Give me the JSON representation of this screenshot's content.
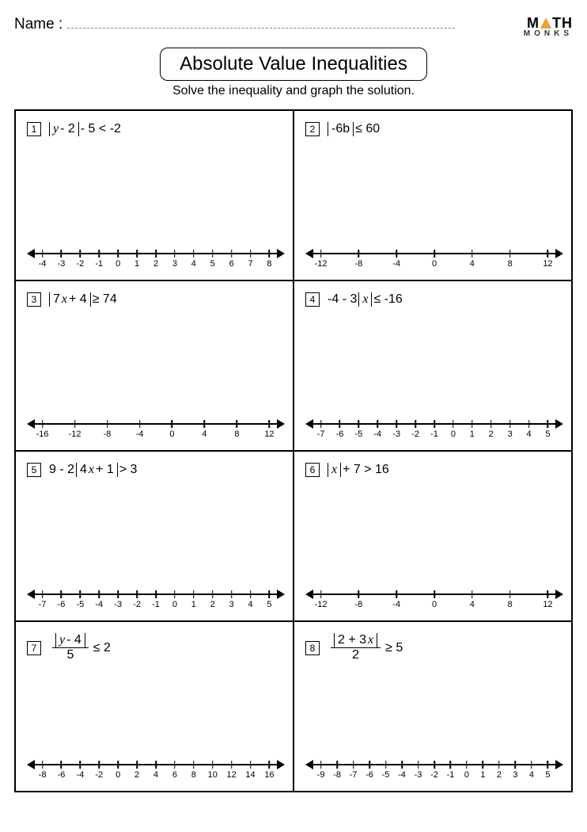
{
  "header": {
    "name_label": "Name :",
    "logo_top_left": "M",
    "logo_top_right": "TH",
    "logo_bottom": "MONKS"
  },
  "title": "Absolute Value Inequalities",
  "subtitle": "Solve the inequality and graph the solution.",
  "problems": [
    {
      "num": "1",
      "expr_html": "<span class='abs'><span class='it'>y</span> - 2</span> - 5 &lt; -2",
      "ticks": [
        -4,
        -3,
        -2,
        -1,
        0,
        1,
        2,
        3,
        4,
        5,
        6,
        7,
        8
      ]
    },
    {
      "num": "2",
      "expr_html": "<span class='abs'>-6b</span> ≤ 60",
      "ticks": [
        -12,
        -8,
        -4,
        0,
        4,
        8,
        12
      ]
    },
    {
      "num": "3",
      "expr_html": "<span class='abs'>7<span class='it'>x</span> + 4</span> ≥ 74",
      "ticks": [
        -16,
        -12,
        -8,
        -4,
        0,
        4,
        8,
        12
      ]
    },
    {
      "num": "4",
      "expr_html": "-4 - 3<span class='abs'><span class='it'>x</span></span> ≤ -16",
      "ticks": [
        -7,
        -6,
        -5,
        -4,
        -3,
        -2,
        -1,
        0,
        1,
        2,
        3,
        4,
        5
      ]
    },
    {
      "num": "5",
      "expr_html": "9 - 2<span class='abs'>4<span class='it'>x</span> + 1</span> &gt; 3",
      "ticks": [
        -7,
        -6,
        -5,
        -4,
        -3,
        -2,
        -1,
        0,
        1,
        2,
        3,
        4,
        5
      ]
    },
    {
      "num": "6",
      "expr_html": "<span class='abs'><span class='it'>x</span></span> + 7 &gt; 16",
      "ticks": [
        -12,
        -8,
        -4,
        0,
        4,
        8,
        12
      ]
    },
    {
      "num": "7",
      "expr_html": "<span class='frac'><span class='top'><span class='abs'><span class='it'>y</span> - 4</span></span><span class='bar'></span><span class='bot'>5</span></span> ≤ 2",
      "ticks": [
        -8,
        -6,
        -4,
        -2,
        0,
        2,
        4,
        6,
        8,
        10,
        12,
        14,
        16
      ]
    },
    {
      "num": "8",
      "expr_html": "<span class='frac'><span class='top'><span class='abs'>2 + 3<span class='it'>x</span></span></span><span class='bar'></span><span class='bot'>2</span></span> ≥ 5",
      "ticks": [
        -9,
        -8,
        -7,
        -6,
        -5,
        -4,
        -3,
        -2,
        -1,
        0,
        1,
        2,
        3,
        4,
        5
      ]
    }
  ],
  "numberline_style": {
    "line_color": "#000000",
    "tick_fontsize": 11,
    "left_margin_pct": 6,
    "right_margin_pct": 6
  }
}
